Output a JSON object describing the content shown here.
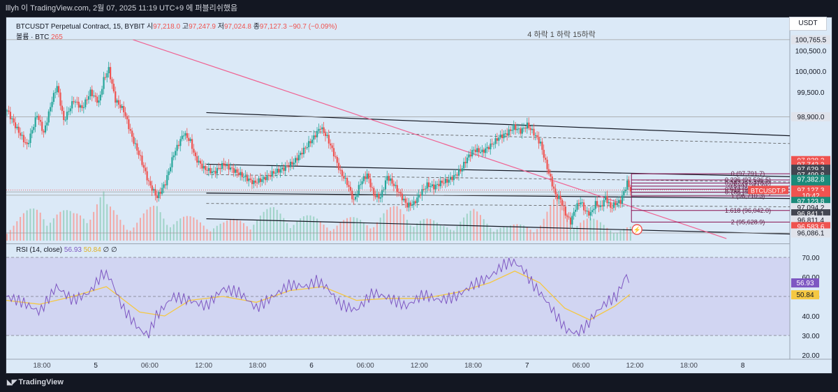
{
  "header": {
    "publish_line": "lllyh 이 TradingView.com, 2월 07, 2025 11:19 UTC+9 에 퍼블리쉬했음"
  },
  "legend": {
    "symbol": "BTCUSDT Perpetual Contract, 15, BYBIT",
    "o_label": "시",
    "o_val": "97,218.0",
    "h_label": "고",
    "h_val": "97,247.9",
    "l_label": "저",
    "l_val": "97,024.8",
    "c_label": "종",
    "c_val": "97,127.3",
    "change": "−90.7 (−0.09%)",
    "volume_label": "볼륨 · BTC",
    "volume_val": "265",
    "rsi_label": "RSI (14, close)",
    "rsi_val": "56.93",
    "rsi_ma_val": "50.84",
    "rsi_extra": "∅ ∅"
  },
  "currency_button": "USDT",
  "annotation": "4 하락 1 하락 15하락",
  "brand": "TradingView",
  "colors": {
    "up": "#26a69a",
    "down": "#ef5350",
    "rsi": "#7e57c2",
    "rsi_ma": "#f5c842",
    "trend": "#f06292",
    "fib": "#880e4f",
    "bg": "#dbe9f7"
  },
  "chart_data": [
    {
      "type": "candlestick",
      "title": "BTCUSDT Perpetual Contract, 15, BYBIT",
      "x_ticks": [
        "18:00",
        "5",
        "06:00",
        "12:00",
        "18:00",
        "6",
        "06:00",
        "12:00",
        "18:00",
        "7",
        "06:00",
        "12:00",
        "18:00",
        "8"
      ],
      "ylim": [
        95900,
        101000
      ],
      "y_ticks": [
        100500,
        100000,
        99500
      ],
      "close_path": [
        [
          0,
          99050
        ],
        [
          6,
          98600
        ],
        [
          12,
          98200
        ],
        [
          18,
          98950
        ],
        [
          22,
          98500
        ],
        [
          27,
          99300
        ],
        [
          30,
          99650
        ],
        [
          34,
          98800
        ],
        [
          40,
          99300
        ],
        [
          45,
          99100
        ],
        [
          50,
          99500
        ],
        [
          55,
          99250
        ],
        [
          58,
          99800
        ],
        [
          61,
          100050
        ],
        [
          65,
          99300
        ],
        [
          70,
          99050
        ],
        [
          75,
          98400
        ],
        [
          80,
          97900
        ],
        [
          85,
          97300
        ],
        [
          90,
          96950
        ],
        [
          95,
          97300
        ],
        [
          100,
          98000
        ],
        [
          106,
          98500
        ],
        [
          110,
          98300
        ],
        [
          113,
          97900
        ],
        [
          118,
          97650
        ],
        [
          124,
          97550
        ],
        [
          130,
          97750
        ],
        [
          136,
          97600
        ],
        [
          142,
          97450
        ],
        [
          148,
          97300
        ],
        [
          154,
          97400
        ],
        [
          160,
          97550
        ],
        [
          166,
          97650
        ],
        [
          172,
          97800
        ],
        [
          178,
          98100
        ],
        [
          184,
          98400
        ],
        [
          188,
          98650
        ],
        [
          192,
          98400
        ],
        [
          196,
          98000
        ],
        [
          200,
          97550
        ],
        [
          204,
          97300
        ],
        [
          208,
          96850
        ],
        [
          212,
          97300
        ],
        [
          216,
          97500
        ],
        [
          220,
          97000
        ],
        [
          224,
          96950
        ],
        [
          228,
          97450
        ],
        [
          232,
          97250
        ],
        [
          236,
          97000
        ],
        [
          240,
          96750
        ],
        [
          244,
          96800
        ],
        [
          248,
          97050
        ],
        [
          252,
          97250
        ],
        [
          256,
          97200
        ],
        [
          260,
          97300
        ],
        [
          264,
          97350
        ],
        [
          268,
          97450
        ],
        [
          272,
          97600
        ],
        [
          276,
          97900
        ],
        [
          280,
          98100
        ],
        [
          285,
          98050
        ],
        [
          290,
          98200
        ],
        [
          295,
          98400
        ],
        [
          300,
          98500
        ],
        [
          304,
          98650
        ],
        [
          308,
          98550
        ],
        [
          312,
          98700
        ],
        [
          316,
          98500
        ],
        [
          320,
          98250
        ],
        [
          323,
          97800
        ],
        [
          326,
          97400
        ],
        [
          329,
          97000
        ],
        [
          332,
          96900
        ],
        [
          335,
          96550
        ],
        [
          338,
          96350
        ],
        [
          341,
          96700
        ],
        [
          344,
          96850
        ],
        [
          347,
          96600
        ],
        [
          350,
          96550
        ],
        [
          353,
          96800
        ],
        [
          356,
          96700
        ],
        [
          359,
          96950
        ],
        [
          362,
          96700
        ],
        [
          365,
          96800
        ],
        [
          368,
          96850
        ],
        [
          372,
          97300
        ],
        [
          374,
          97127
        ]
      ],
      "volume_path": [
        [
          0,
          70
        ],
        [
          20,
          160
        ],
        [
          25,
          140
        ],
        [
          40,
          120
        ],
        [
          58,
          210
        ],
        [
          60,
          150
        ],
        [
          75,
          80
        ],
        [
          90,
          160
        ],
        [
          100,
          110
        ],
        [
          130,
          80
        ],
        [
          160,
          140
        ],
        [
          190,
          90
        ],
        [
          215,
          100
        ],
        [
          235,
          150
        ],
        [
          260,
          70
        ],
        [
          280,
          130
        ],
        [
          300,
          60
        ],
        [
          320,
          90
        ],
        [
          330,
          190
        ],
        [
          340,
          120
        ],
        [
          360,
          70
        ],
        [
          374,
          60
        ]
      ],
      "price_scale": [
        {
          "label": "100,765.5",
          "price": 100765.5,
          "style": "grey"
        },
        {
          "label": "98,900.0",
          "price": 98900,
          "style": "grey"
        },
        {
          "label": "97,838.2",
          "price": 97838.2,
          "style": "red"
        },
        {
          "label": "97,742.2",
          "price": 97742.2,
          "style": "red"
        },
        {
          "label": "97,629.3",
          "price": 97629.3,
          "style": "dark"
        },
        {
          "label": "97,499.8",
          "price": 97499.8,
          "style": "dark"
        },
        {
          "label": "97,382.8",
          "price": 97382.8,
          "style": "green"
        },
        {
          "label": "97,178.1",
          "price": 97178.1,
          "style": "green"
        },
        {
          "label": "97,127.3",
          "price": 97127.3,
          "style": "red"
        },
        {
          "label": "10:42",
          "price": 96990,
          "style": "red"
        },
        {
          "label": "97,123.8",
          "price": 96850,
          "style": "green"
        },
        {
          "label": "97,094.2",
          "price": 96700,
          "style": "grey"
        },
        {
          "label": "96,841.1",
          "price": 96550,
          "style": "dark"
        },
        {
          "label": "96,811.4",
          "price": 96400,
          "style": "grey"
        },
        {
          "label": "96,583.6",
          "price": 96240,
          "style": "red"
        },
        {
          "label": "96,086.1",
          "price": 96086.1,
          "style": "grey"
        }
      ],
      "fib_levels": [
        {
          "label": "0 (97,791.7)",
          "price": 97520
        },
        {
          "label": "0.236 (97,536.5)",
          "price": 97370
        },
        {
          "label": "0.382 (97,378.6)",
          "price": 97295
        },
        {
          "label": "0.5 (97,251.0)",
          "price": 97220
        },
        {
          "label": "0.618 (97,123.4)",
          "price": 97145
        },
        {
          "label": "0.786 (96,941.7)",
          "price": 97070
        },
        {
          "label": "1 (96,710.3)",
          "price": 96980
        },
        {
          "label": "1.618 (96,042.0)",
          "price": 96630
        },
        {
          "label": "2 (95,628.9)",
          "price": 96350
        }
      ],
      "symbol_tag": "BTCUSDT.P"
    },
    {
      "type": "line",
      "title": "RSI (14, close)",
      "ylim": [
        20,
        75
      ],
      "y_ticks": [
        70,
        60,
        50,
        40,
        30,
        20
      ],
      "band": [
        30,
        70
      ],
      "series": [
        {
          "name": "RSI",
          "values": [
            [
              0,
              50
            ],
            [
              10,
              47
            ],
            [
              20,
              42
            ],
            [
              30,
              55
            ],
            [
              40,
              48
            ],
            [
              50,
              52
            ],
            [
              58,
              62
            ],
            [
              62,
              60
            ],
            [
              70,
              44
            ],
            [
              80,
              33
            ],
            [
              85,
              30
            ],
            [
              90,
              40
            ],
            [
              100,
              50
            ],
            [
              110,
              48
            ],
            [
              120,
              45
            ],
            [
              130,
              54
            ],
            [
              140,
              52
            ],
            [
              150,
              44
            ],
            [
              160,
              50
            ],
            [
              170,
              56
            ],
            [
              180,
              55
            ],
            [
              186,
              58
            ],
            [
              192,
              55
            ],
            [
              200,
              46
            ],
            [
              210,
              43
            ],
            [
              220,
              52
            ],
            [
              230,
              49
            ],
            [
              240,
              45
            ],
            [
              250,
              51
            ],
            [
              260,
              48
            ],
            [
              270,
              50
            ],
            [
              280,
              56
            ],
            [
              290,
              60
            ],
            [
              298,
              66
            ],
            [
              304,
              68
            ],
            [
              310,
              64
            ],
            [
              316,
              56
            ],
            [
              322,
              50
            ],
            [
              330,
              40
            ],
            [
              336,
              33
            ],
            [
              342,
              31
            ],
            [
              348,
              35
            ],
            [
              354,
              42
            ],
            [
              360,
              47
            ],
            [
              366,
              50
            ],
            [
              372,
              61
            ],
            [
              374,
              57
            ]
          ]
        },
        {
          "name": "RSI MA",
          "values": [
            [
              0,
              48
            ],
            [
              20,
              46
            ],
            [
              40,
              50
            ],
            [
              60,
              55
            ],
            [
              80,
              42
            ],
            [
              95,
              40
            ],
            [
              110,
              48
            ],
            [
              130,
              50
            ],
            [
              150,
              47
            ],
            [
              170,
              53
            ],
            [
              190,
              55
            ],
            [
              210,
              48
            ],
            [
              230,
              49
            ],
            [
              250,
              49
            ],
            [
              270,
              52
            ],
            [
              290,
              57
            ],
            [
              305,
              63
            ],
            [
              320,
              57
            ],
            [
              335,
              44
            ],
            [
              350,
              38
            ],
            [
              365,
              45
            ],
            [
              374,
              51
            ]
          ]
        }
      ],
      "value_tags": [
        {
          "label": "56.93",
          "value": 56.93,
          "style": "purple"
        },
        {
          "label": "50.84",
          "value": 50.84,
          "style": "yellow"
        }
      ]
    }
  ]
}
